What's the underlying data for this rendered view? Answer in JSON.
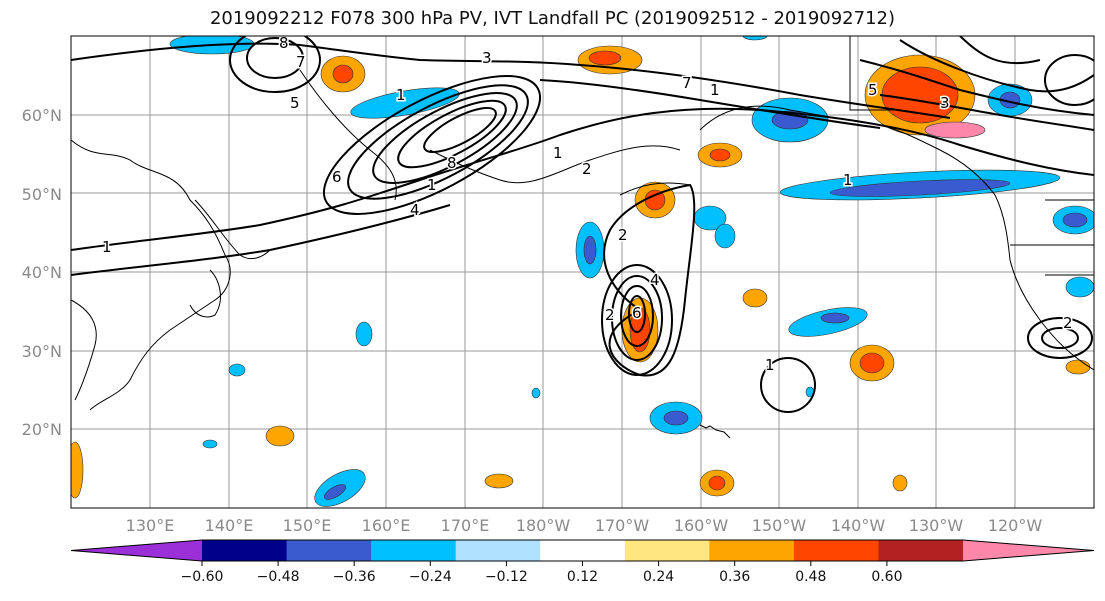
{
  "title": "2019092212 F078 300 hPa PV, IVT Landfall PC (2019092512 - 2019092712)",
  "lat_labels": [
    "20°N",
    "30°N",
    "40°N",
    "50°N",
    "60°N"
  ],
  "lon_labels": [
    "130°E",
    "140°E",
    "150°E",
    "160°E",
    "170°E",
    "180°W",
    "170°W",
    "160°W",
    "150°W",
    "140°W",
    "130°W",
    "120°W"
  ],
  "contour_labels": [
    "1",
    "1",
    "1",
    "1",
    "1",
    "2",
    "2",
    "3",
    "4",
    "5",
    "6",
    "7",
    "8",
    "8",
    "1",
    "2",
    "3",
    "4",
    "5",
    "6",
    "7",
    "1",
    "2"
  ],
  "colorbar": {
    "tick_labels": [
      "−0.60",
      "−0.48",
      "−0.36",
      "−0.24",
      "−0.12",
      "0.12",
      "0.24",
      "0.36",
      "0.48",
      "0.60"
    ],
    "colors": [
      "#9b30d9",
      "#00008b",
      "#3a5bd0",
      "#00bfff",
      "#b0e2ff",
      "#ffffff",
      "#ffe680",
      "#ffa500",
      "#ff4500",
      "#b22222",
      "#ff88aa"
    ]
  }
}
